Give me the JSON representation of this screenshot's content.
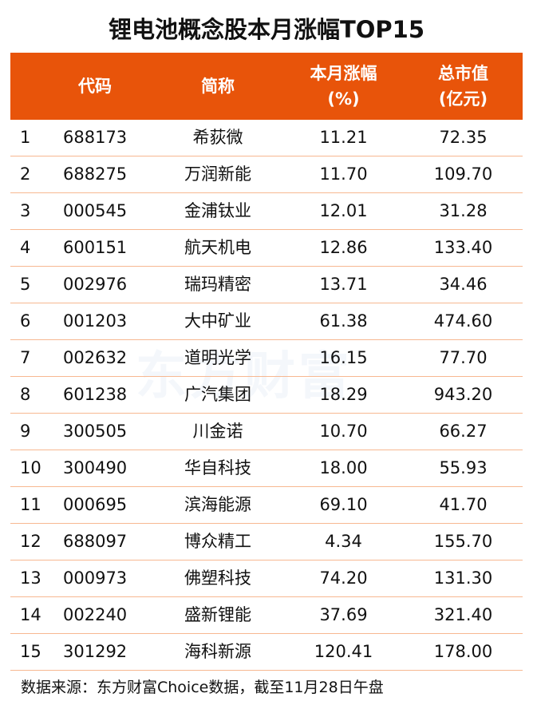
{
  "title": "锂电池概念股本月涨幅TOP15",
  "header": {
    "code": "代码",
    "name": "简称",
    "pct_line1": "本月涨幅",
    "pct_line2": "(%)",
    "cap_line1": "总市值",
    "cap_line2": "(亿元)"
  },
  "accent_color": "#E8540A",
  "rows": [
    {
      "rank": "1",
      "code": "688173",
      "name": "希荻微",
      "pct": "11.21",
      "cap": "72.35"
    },
    {
      "rank": "2",
      "code": "688275",
      "name": "万润新能",
      "pct": "11.70",
      "cap": "109.70"
    },
    {
      "rank": "3",
      "code": "000545",
      "name": "金浦钛业",
      "pct": "12.01",
      "cap": "31.28"
    },
    {
      "rank": "4",
      "code": "600151",
      "name": "航天机电",
      "pct": "12.86",
      "cap": "133.40"
    },
    {
      "rank": "5",
      "code": "002976",
      "name": "瑞玛精密",
      "pct": "13.71",
      "cap": "34.46"
    },
    {
      "rank": "6",
      "code": "001203",
      "name": "大中矿业",
      "pct": "61.38",
      "cap": "474.60"
    },
    {
      "rank": "7",
      "code": "002632",
      "name": "道明光学",
      "pct": "16.15",
      "cap": "77.70"
    },
    {
      "rank": "8",
      "code": "601238",
      "name": "广汽集团",
      "pct": "18.29",
      "cap": "943.20"
    },
    {
      "rank": "9",
      "code": "300505",
      "name": "川金诺",
      "pct": "10.70",
      "cap": "66.27"
    },
    {
      "rank": "10",
      "code": "300490",
      "name": "华自科技",
      "pct": "18.00",
      "cap": "55.93"
    },
    {
      "rank": "11",
      "code": "000695",
      "name": "滨海能源",
      "pct": "69.10",
      "cap": "41.70"
    },
    {
      "rank": "12",
      "code": "688097",
      "name": "博众精工",
      "pct": "4.34",
      "cap": "155.70"
    },
    {
      "rank": "13",
      "code": "000973",
      "name": "佛塑科技",
      "pct": "74.20",
      "cap": "131.30"
    },
    {
      "rank": "14",
      "code": "002240",
      "name": "盛新锂能",
      "pct": "37.69",
      "cap": "321.40"
    },
    {
      "rank": "15",
      "code": "301292",
      "name": "海科新源",
      "pct": "120.41",
      "cap": "178.00"
    }
  ],
  "footer": "数据来源：东方财富Choice数据，截至11月28日午盘",
  "watermark": "东方财富"
}
